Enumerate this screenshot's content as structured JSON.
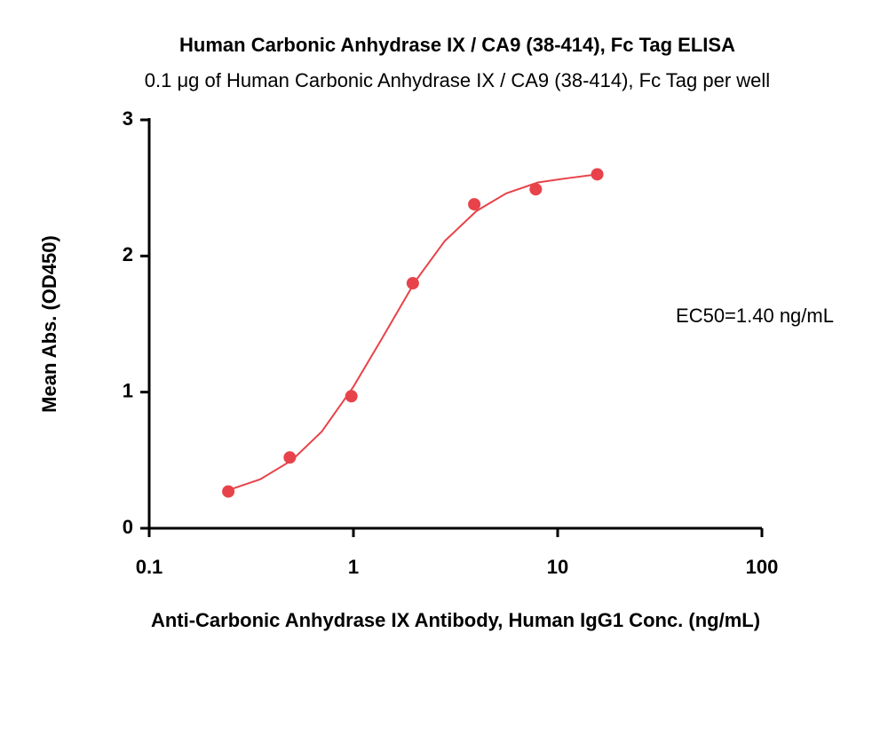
{
  "chart_data": {
    "type": "scatter",
    "title": "Human Carbonic Anhydrase IX / CA9 (38-414), Fc Tag ELISA",
    "subtitle": "0.1 μg of Human Carbonic Anhydrase IX / CA9 (38-414), Fc Tag per well",
    "x_label": "Anti-Carbonic Anhydrase IX Antibody, Human IgG1 Conc. (ng/mL)",
    "y_label": "Mean Abs. (OD450)",
    "annotation": "EC50=1.40 ng/mL",
    "x_scale": "log",
    "xlim": [
      0.1,
      100
    ],
    "xticks": [
      0.1,
      1,
      10,
      100
    ],
    "ylim": [
      0,
      3
    ],
    "yticks": [
      0,
      1,
      2,
      3
    ],
    "series": [
      {
        "type": "scatter",
        "color": "#e8434a",
        "x": [
          0.244,
          0.488,
          0.977,
          1.953,
          3.906,
          7.813,
          15.625
        ],
        "values": [
          0.27,
          0.52,
          0.97,
          1.8,
          2.38,
          2.49,
          2.6
        ]
      },
      {
        "type": "line",
        "color": "#e8434a",
        "x": [
          0.244,
          0.35,
          0.5,
          0.7,
          1,
          1.4,
          2,
          2.8,
          4,
          5.6,
          8,
          11,
          15.6
        ],
        "values": [
          0.28,
          0.36,
          0.5,
          0.71,
          1.04,
          1.41,
          1.81,
          2.11,
          2.33,
          2.46,
          2.54,
          2.57,
          2.6
        ]
      }
    ]
  }
}
